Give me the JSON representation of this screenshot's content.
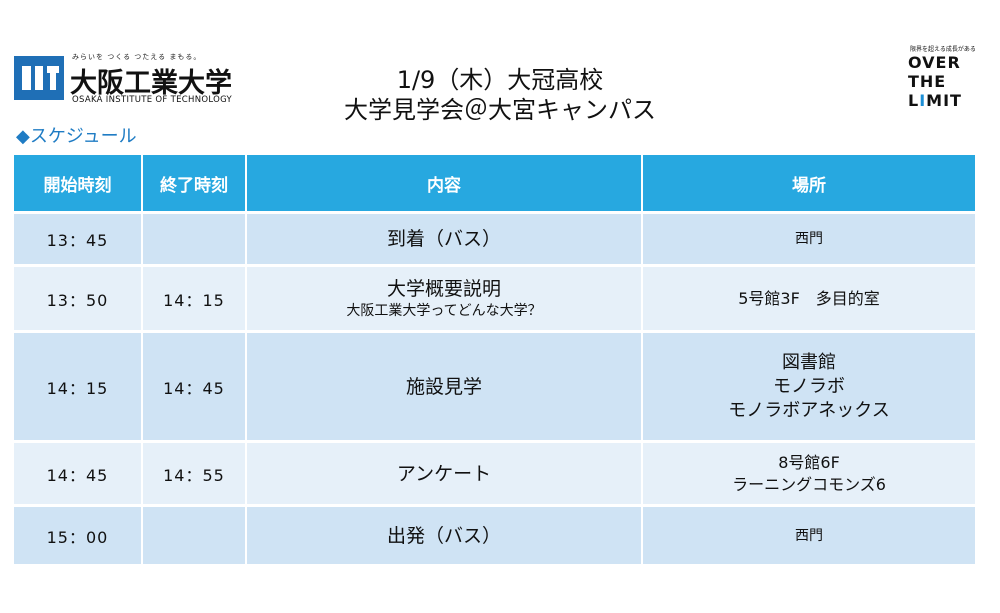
{
  "logo": {
    "tagline": "みらいを つくる つたえる まもる。",
    "name": "大阪工業大学",
    "name_en": "OSAKA INSTITUTE OF TECHNOLOGY",
    "accent_color": "#1f6fb6"
  },
  "title": {
    "line1": "1/9（木）大冠高校",
    "line2": "大学見学会＠大宮キャンパス"
  },
  "right_logo": {
    "tagline": "限界を超える成長がある",
    "line1": "OVER",
    "line2": "THE",
    "line3_a": "L",
    "line3_b": "I",
    "line3_c": "MIT"
  },
  "section_title": "◆スケジュール",
  "table": {
    "header_color": "#27a8e0",
    "headers": {
      "start": "開始時刻",
      "end": "終了時刻",
      "content": "内容",
      "place": "場所"
    },
    "rows": [
      {
        "start": "13：45",
        "end": "",
        "content": "到着（バス）",
        "content_sub": "",
        "place": [
          "西門"
        ]
      },
      {
        "start": "13：50",
        "end": "14：15",
        "content": "大学概要説明",
        "content_sub": "大阪工業大学ってどんな大学？",
        "place": [
          "5号館3F　多目的室"
        ]
      },
      {
        "start": "14：15",
        "end": "14：45",
        "content": "施設見学",
        "content_sub": "",
        "place": [
          "図書館",
          "モノラボ",
          "モノラボアネックス"
        ]
      },
      {
        "start": "14：45",
        "end": "14：55",
        "content": "アンケート",
        "content_sub": "",
        "place": [
          "8号館6F",
          "ラーニングコモンズ6"
        ]
      },
      {
        "start": "15：00",
        "end": "",
        "content": "出発（バス）",
        "content_sub": "",
        "place": [
          "西門"
        ]
      }
    ]
  }
}
